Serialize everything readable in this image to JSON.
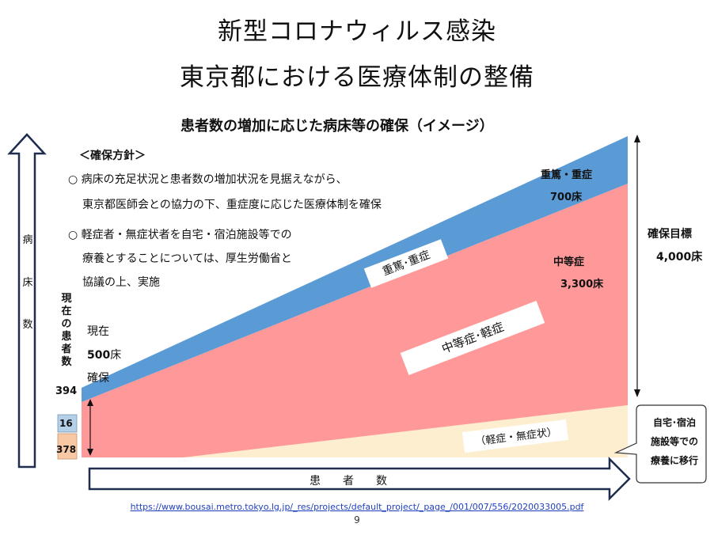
{
  "title_line1": "新型コロナウィルス感染",
  "title_line2": "東京都における医療体制の整備",
  "subtitle": "患者数の増加に応じた病床等の確保（イメージ）",
  "policy": {
    "heading": "＜確保方針＞",
    "bullet1_line1": "○  病床の充足状況と患者数の増加状況を見据えながら、",
    "bullet1_line2": "東京都医師会との協力の下、重症度に応じた医療体制を確保",
    "bullet2_line1": "○  軽症者・無症状者を自宅・宿泊施設等での",
    "bullet2_line2": "療養とすることについては、厚生労働省と",
    "bullet2_line3": "協議の上、実施"
  },
  "y_axis_label": [
    "病",
    "床",
    "数"
  ],
  "x_axis_label": "患　　者　　数",
  "current_patients": {
    "label": [
      "現",
      "在",
      "の",
      "患",
      "者",
      "数"
    ],
    "total": "394",
    "severe": "16",
    "moderate": "378"
  },
  "current_beds": {
    "line1": "現在",
    "number": "500",
    "unit": "床",
    "line3": "確保"
  },
  "bands": {
    "severe_label": "重篤･重症",
    "moderate_label": "中等症･軽症",
    "mild_label": "（軽症・無症状）"
  },
  "targets": {
    "severe_name": "重篤・重症",
    "severe_beds": "700床",
    "moderate_name": "中等症",
    "moderate_beds": "3,300床",
    "total_name": "確保目標",
    "total_beds": "4,000床"
  },
  "callout": {
    "line1": "自宅･宿泊",
    "line2": "施設等での",
    "line3": "療養に移行"
  },
  "colors": {
    "severe": "#5b9bd5",
    "moderate": "#ff9999",
    "mild": "#fdeed0",
    "arrow_fill": "#ffffff",
    "arrow_stroke": "#1f2d4e",
    "current_severe_box": "#b4cfe8",
    "current_moderate_box": "#f8c7a4"
  },
  "source_url": "https://www.bousai.metro.tokyo.lg.jp/_res/projects/default_project/_page_/001/007/556/2020033005.pdf",
  "page_number": "9"
}
